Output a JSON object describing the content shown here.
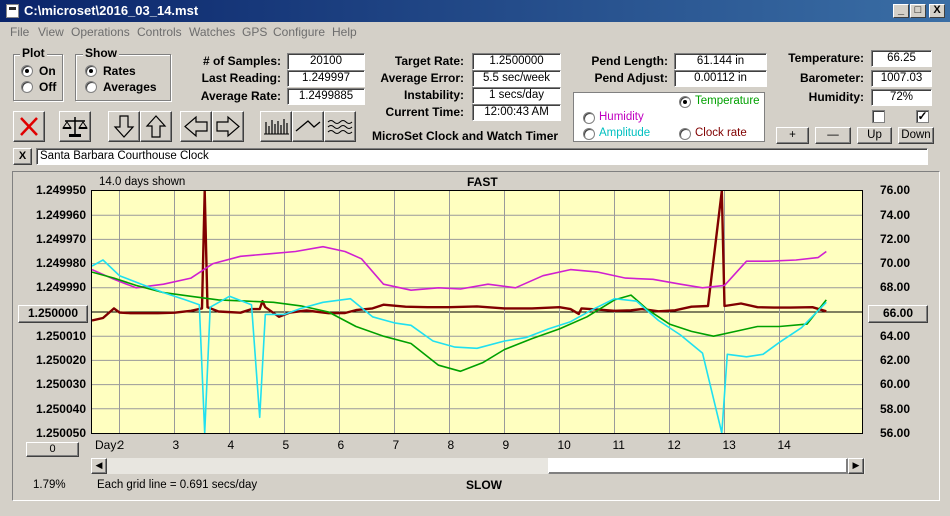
{
  "window": {
    "title": "C:\\microset\\2016_03_14.mst",
    "min": "_",
    "max": "□",
    "close": "X"
  },
  "menu": [
    "File",
    "View",
    "Operations",
    "Controls",
    "Watches",
    "GPS",
    "Configure",
    "Help"
  ],
  "plot_group": {
    "label": "Plot",
    "options": [
      "On",
      "Off"
    ],
    "selected": "On"
  },
  "show_group": {
    "label": "Show",
    "options": [
      "Rates",
      "Averages"
    ],
    "selected": "Rates"
  },
  "stats1": [
    {
      "label": "# of Samples:",
      "value": "20100"
    },
    {
      "label": "Last Reading:",
      "value": "1.249997"
    },
    {
      "label": "Average Rate:",
      "value": "1.2499885"
    }
  ],
  "stats2": [
    {
      "label": "Target Rate:",
      "value": "1.2500000"
    },
    {
      "label": "Average Error:",
      "value": "5.5 sec/week"
    },
    {
      "label": "Instability:",
      "value": "1 secs/day"
    },
    {
      "label": "Current Time:",
      "value": "12:00:43 AM"
    }
  ],
  "stats3": [
    {
      "label": "Pend Length:",
      "value": "61.144 in"
    },
    {
      "label": "Pend Adjust:",
      "value": "0.00112 in"
    }
  ],
  "stats4": [
    {
      "label": "Temperature:",
      "value": "66.25"
    },
    {
      "label": "Barometer:",
      "value": "1007.03"
    },
    {
      "label": "Humidity:",
      "value": "72%"
    }
  ],
  "app_title": "MicroSet Clock and Watch Timer",
  "series_select": {
    "options": [
      {
        "label": "Temperature",
        "color": "#00a000",
        "selected": true
      },
      {
        "label": "Humidity",
        "color": "#c000c0",
        "selected": false
      },
      {
        "label": "Amplitude",
        "color": "#00c0c0",
        "selected": false
      },
      {
        "label": "Clock rate",
        "color": "#800000",
        "selected": false
      }
    ]
  },
  "checkboxes": [
    {
      "checked": false
    },
    {
      "checked": true
    }
  ],
  "adjust_buttons": [
    "+",
    "—",
    "Up",
    "Down"
  ],
  "clock_name": "Santa Barbara Courthouse Clock",
  "clear_button": "X",
  "chart_header": {
    "days_shown": "14.0 days shown",
    "fast_label": "FAST",
    "slow_label": "SLOW",
    "grid_note": "Each grid line = 0.691 secs/day",
    "percent": "1.79%",
    "day_label": "Day:",
    "left_center_button": "1.250000",
    "right_center_button": "66.00",
    "bottom_left_button": "0"
  },
  "chart_data": {
    "type": "line",
    "x_range": [
      1.5,
      15.5
    ],
    "x_ticks": [
      2,
      3,
      4,
      5,
      6,
      7,
      8,
      9,
      10,
      11,
      12,
      13,
      14
    ],
    "y_left": {
      "ticks": [
        "1.249950",
        "1.249960",
        "1.249970",
        "1.249980",
        "1.249990",
        "1.250010",
        "1.250020",
        "1.250030",
        "1.250040",
        "1.250050"
      ],
      "range": [
        1.24995,
        1.25005
      ],
      "inverted": true
    },
    "y_right": {
      "ticks": [
        "76.00",
        "74.00",
        "72.00",
        "70.00",
        "68.00",
        "64.00",
        "62.00",
        "60.00",
        "58.00",
        "56.00"
      ],
      "range": [
        56,
        76
      ]
    },
    "series": [
      {
        "name": "Clock rate",
        "color": "#800000",
        "axis": "left",
        "points": [
          [
            1.5,
            1.2500035
          ],
          [
            1.7,
            1.2500025
          ],
          [
            1.9,
            1.2499985
          ],
          [
            2.0,
            1.2500002
          ],
          [
            2.2,
            1.2500005
          ],
          [
            2.4,
            1.2500005
          ],
          [
            2.7,
            1.2500005
          ],
          [
            3.0,
            1.2500003
          ],
          [
            3.3,
            1.2499995
          ],
          [
            3.5,
            1.2499985
          ],
          [
            3.55,
            1.24995
          ],
          [
            3.6,
            1.249998
          ],
          [
            3.8,
            1.2499998
          ],
          [
            4.2,
            1.2500003
          ],
          [
            4.4,
            1.2499988
          ],
          [
            4.55,
            1.2499988
          ],
          [
            4.6,
            1.2499955
          ],
          [
            4.65,
            1.249998
          ],
          [
            4.9,
            1.250002
          ],
          [
            5.1,
            1.2500002
          ],
          [
            5.4,
            1.2499994
          ],
          [
            5.8,
            1.2500005
          ],
          [
            6.1,
            1.2500004
          ],
          [
            6.3,
            1.2499992
          ],
          [
            6.6,
            1.2499985
          ],
          [
            6.8,
            1.249997
          ],
          [
            7.2,
            1.2499978
          ],
          [
            7.6,
            1.249998
          ],
          [
            8.0,
            1.249998
          ],
          [
            8.5,
            1.2499977
          ],
          [
            9.0,
            1.2499985
          ],
          [
            9.5,
            1.2499985
          ],
          [
            10.0,
            1.249998
          ],
          [
            10.2,
            1.2499988
          ],
          [
            10.35,
            1.2500008
          ],
          [
            10.4,
            1.2499985
          ],
          [
            10.7,
            1.249999
          ],
          [
            11.0,
            1.2499995
          ],
          [
            11.3,
            1.2499993
          ],
          [
            11.5,
            1.2499988
          ],
          [
            11.8,
            1.2499997
          ],
          [
            12.1,
            1.2499993
          ],
          [
            12.4,
            1.2499978
          ],
          [
            12.7,
            1.2499975
          ],
          [
            12.95,
            1.24995
          ],
          [
            13.0,
            1.2499975
          ],
          [
            13.3,
            1.2499965
          ],
          [
            13.6,
            1.249998
          ],
          [
            13.9,
            1.2499982
          ],
          [
            14.2,
            1.2499982
          ],
          [
            14.6,
            1.249998
          ],
          [
            14.85,
            1.2499997
          ]
        ]
      },
      {
        "name": "Humidity",
        "color": "#d020d0",
        "axis": "right",
        "points": [
          [
            1.5,
            69.5
          ],
          [
            1.9,
            68.7
          ],
          [
            2.3,
            68.0
          ],
          [
            2.8,
            68.3
          ],
          [
            3.3,
            68.8
          ],
          [
            3.7,
            70.0
          ],
          [
            4.2,
            70.6
          ],
          [
            4.7,
            70.8
          ],
          [
            5.2,
            71.0
          ],
          [
            5.7,
            71.4
          ],
          [
            6.1,
            71.0
          ],
          [
            6.4,
            70.4
          ],
          [
            6.8,
            68.3
          ],
          [
            7.3,
            67.8
          ],
          [
            7.8,
            68.0
          ],
          [
            8.2,
            67.9
          ],
          [
            8.7,
            68.3
          ],
          [
            9.2,
            68.0
          ],
          [
            9.7,
            69.0
          ],
          [
            10.2,
            69.5
          ],
          [
            10.7,
            69.3
          ],
          [
            11.2,
            68.8
          ],
          [
            11.7,
            68.7
          ],
          [
            12.2,
            68.3
          ],
          [
            12.6,
            68.0
          ],
          [
            13.0,
            68.2
          ],
          [
            13.4,
            70.2
          ],
          [
            13.8,
            70.2
          ],
          [
            14.3,
            70.3
          ],
          [
            14.7,
            70.5
          ],
          [
            14.85,
            71.0
          ]
        ]
      },
      {
        "name": "Temperature",
        "color": "#00a000",
        "axis": "right",
        "points": [
          [
            1.5,
            69.3
          ],
          [
            1.9,
            68.8
          ],
          [
            2.3,
            68.2
          ],
          [
            2.8,
            67.6
          ],
          [
            3.3,
            67.3
          ],
          [
            3.8,
            67.0
          ],
          [
            4.3,
            66.9
          ],
          [
            4.8,
            66.8
          ],
          [
            5.3,
            66.5
          ],
          [
            5.8,
            66.0
          ],
          [
            6.3,
            64.8
          ],
          [
            6.8,
            64.0
          ],
          [
            7.3,
            63.4
          ],
          [
            7.8,
            61.6
          ],
          [
            8.2,
            61.1
          ],
          [
            8.6,
            61.8
          ],
          [
            9.0,
            62.9
          ],
          [
            9.5,
            63.8
          ],
          [
            10.0,
            64.6
          ],
          [
            10.5,
            65.6
          ],
          [
            11.0,
            67.0
          ],
          [
            11.3,
            67.4
          ],
          [
            11.6,
            66.2
          ],
          [
            12.0,
            65.0
          ],
          [
            12.4,
            64.4
          ],
          [
            12.8,
            64.0
          ],
          [
            13.2,
            64.4
          ],
          [
            13.6,
            64.8
          ],
          [
            14.0,
            64.8
          ],
          [
            14.5,
            65.0
          ],
          [
            14.85,
            67.0
          ]
        ]
      },
      {
        "name": "Amplitude",
        "color": "#20e0f0",
        "axis": "right",
        "points": [
          [
            1.5,
            69.8
          ],
          [
            1.7,
            70.3
          ],
          [
            2.0,
            69.0
          ],
          [
            2.4,
            68.3
          ],
          [
            2.8,
            67.6
          ],
          [
            3.2,
            67.0
          ],
          [
            3.45,
            66.6
          ],
          [
            3.55,
            56.0
          ],
          [
            3.65,
            66.4
          ],
          [
            4.0,
            67.3
          ],
          [
            4.4,
            66.6
          ],
          [
            4.55,
            57.3
          ],
          [
            4.65,
            65.8
          ],
          [
            5.0,
            65.8
          ],
          [
            5.3,
            66.3
          ],
          [
            5.7,
            66.8
          ],
          [
            6.2,
            67.1
          ],
          [
            6.6,
            65.6
          ],
          [
            7.0,
            65.1
          ],
          [
            7.3,
            64.9
          ],
          [
            7.7,
            63.6
          ],
          [
            8.1,
            63.1
          ],
          [
            8.5,
            63.0
          ],
          [
            9.0,
            63.6
          ],
          [
            9.4,
            63.9
          ],
          [
            9.8,
            64.6
          ],
          [
            10.2,
            65.2
          ],
          [
            10.6,
            66.2
          ],
          [
            11.0,
            67.1
          ],
          [
            11.4,
            66.9
          ],
          [
            11.8,
            65.3
          ],
          [
            12.2,
            64.1
          ],
          [
            12.6,
            62.6
          ],
          [
            12.95,
            56.0
          ],
          [
            13.05,
            62.5
          ],
          [
            13.4,
            62.3
          ],
          [
            13.7,
            62.5
          ],
          [
            14.0,
            63.5
          ],
          [
            14.4,
            64.7
          ],
          [
            14.85,
            66.8
          ]
        ]
      }
    ]
  }
}
